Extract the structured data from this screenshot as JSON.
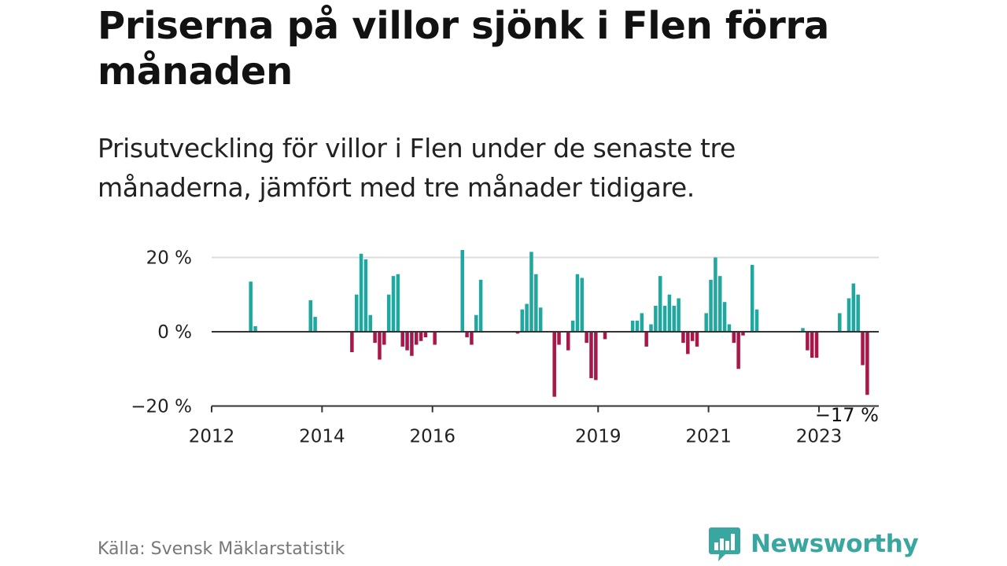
{
  "title": "Priserna på villor sjönk i Flen förra månaden",
  "subtitle": "Prisutveckling för villor i Flen under de senaste tre månaderna, jämfört med tre månader tidigare.",
  "source": "Källa: Svensk Mäklarstatistik",
  "brand": {
    "name": "Newsworthy",
    "logo_icon": "newsworthy-bar-chart-icon"
  },
  "colors": {
    "positive": "#1fa8a0",
    "negative": "#a8174a",
    "grid": "#dddddd",
    "axis": "#333333",
    "brand": "#3aa6a0"
  },
  "chart_data": {
    "type": "bar",
    "title": "",
    "xlabel": "",
    "ylabel": "",
    "x_ticks": [
      "2012",
      "2014",
      "2016",
      "2019",
      "2021",
      "2023"
    ],
    "y_ticks": [
      "20 %",
      "0 %",
      "−20 %"
    ],
    "ylim": [
      -20,
      20
    ],
    "grid": true,
    "last_value_label": "−17 %",
    "series": [
      {
        "values": [
          {
            "x": "2012-09",
            "y": 13.5
          },
          {
            "x": "2012-10",
            "y": 1.5
          },
          {
            "x": "2013-10",
            "y": 8.5
          },
          {
            "x": "2013-11",
            "y": 4
          },
          {
            "x": "2014-07",
            "y": -5.5
          },
          {
            "x": "2014-08",
            "y": 10
          },
          {
            "x": "2014-09",
            "y": 21
          },
          {
            "x": "2014-10",
            "y": 19.5
          },
          {
            "x": "2014-11",
            "y": 4.5
          },
          {
            "x": "2014-12",
            "y": -3
          },
          {
            "x": "2015-01",
            "y": -7.5
          },
          {
            "x": "2015-02",
            "y": -3.5
          },
          {
            "x": "2015-03",
            "y": 10
          },
          {
            "x": "2015-04",
            "y": 15
          },
          {
            "x": "2015-05",
            "y": 15.5
          },
          {
            "x": "2015-06",
            "y": -4
          },
          {
            "x": "2015-07",
            "y": -5
          },
          {
            "x": "2015-08",
            "y": -6.5
          },
          {
            "x": "2015-09",
            "y": -3.5
          },
          {
            "x": "2015-10",
            "y": -2.5
          },
          {
            "x": "2015-11",
            "y": -1.5
          },
          {
            "x": "2016-01",
            "y": -3.5
          },
          {
            "x": "2016-07",
            "y": 22
          },
          {
            "x": "2016-08",
            "y": -1.5
          },
          {
            "x": "2016-09",
            "y": -3.5
          },
          {
            "x": "2016-10",
            "y": 4.5
          },
          {
            "x": "2016-11",
            "y": 14
          },
          {
            "x": "2017-07",
            "y": -0.5
          },
          {
            "x": "2017-08",
            "y": 6
          },
          {
            "x": "2017-09",
            "y": 7.5
          },
          {
            "x": "2017-10",
            "y": 21.5
          },
          {
            "x": "2017-11",
            "y": 15.5
          },
          {
            "x": "2017-12",
            "y": 6.5
          },
          {
            "x": "2018-03",
            "y": -17.5
          },
          {
            "x": "2018-04",
            "y": -3.5
          },
          {
            "x": "2018-06",
            "y": -5
          },
          {
            "x": "2018-07",
            "y": 3
          },
          {
            "x": "2018-08",
            "y": 15.5
          },
          {
            "x": "2018-09",
            "y": 14.5
          },
          {
            "x": "2018-10",
            "y": -3
          },
          {
            "x": "2018-11",
            "y": -12.5
          },
          {
            "x": "2018-12",
            "y": -13
          },
          {
            "x": "2019-02",
            "y": -2
          },
          {
            "x": "2019-08",
            "y": 3
          },
          {
            "x": "2019-09",
            "y": 3
          },
          {
            "x": "2019-10",
            "y": 5
          },
          {
            "x": "2019-11",
            "y": -4
          },
          {
            "x": "2019-12",
            "y": 2
          },
          {
            "x": "2020-01",
            "y": 7
          },
          {
            "x": "2020-02",
            "y": 15
          },
          {
            "x": "2020-03",
            "y": 7
          },
          {
            "x": "2020-04",
            "y": 10
          },
          {
            "x": "2020-05",
            "y": 7
          },
          {
            "x": "2020-06",
            "y": 9
          },
          {
            "x": "2020-07",
            "y": -3
          },
          {
            "x": "2020-08",
            "y": -6
          },
          {
            "x": "2020-09",
            "y": -2.5
          },
          {
            "x": "2020-10",
            "y": -4
          },
          {
            "x": "2020-12",
            "y": 5
          },
          {
            "x": "2021-01",
            "y": 14
          },
          {
            "x": "2021-02",
            "y": 20
          },
          {
            "x": "2021-03",
            "y": 15
          },
          {
            "x": "2021-04",
            "y": 8
          },
          {
            "x": "2021-05",
            "y": 2
          },
          {
            "x": "2021-06",
            "y": -3
          },
          {
            "x": "2021-07",
            "y": -10
          },
          {
            "x": "2021-08",
            "y": -1
          },
          {
            "x": "2021-10",
            "y": 18
          },
          {
            "x": "2021-11",
            "y": 6
          },
          {
            "x": "2022-09",
            "y": 1
          },
          {
            "x": "2022-10",
            "y": -5
          },
          {
            "x": "2022-11",
            "y": -7
          },
          {
            "x": "2022-12",
            "y": -7
          },
          {
            "x": "2023-05",
            "y": 5
          },
          {
            "x": "2023-07",
            "y": 9
          },
          {
            "x": "2023-08",
            "y": 13
          },
          {
            "x": "2023-09",
            "y": 10
          },
          {
            "x": "2023-10",
            "y": -9
          },
          {
            "x": "2023-11",
            "y": -17
          }
        ]
      }
    ]
  }
}
